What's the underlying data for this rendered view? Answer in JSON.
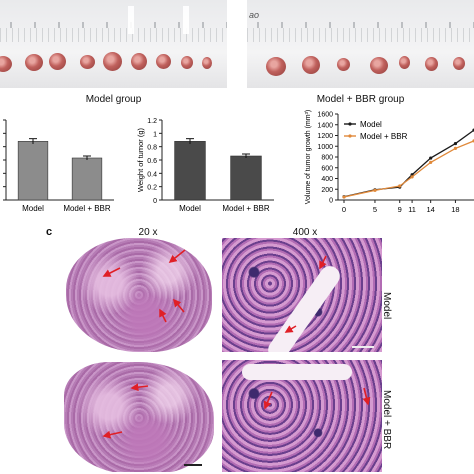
{
  "panel_a": {
    "photos": [
      {
        "name": "model",
        "caption": "Model group",
        "tumor_count": 10
      },
      {
        "name": "bbr",
        "caption": "Model + BBR group",
        "tumor_count": 8,
        "corner_text": "ao"
      }
    ]
  },
  "chart_data": [
    {
      "type": "bar",
      "title": "",
      "ylabel": "",
      "categories": [
        "Model",
        "Model + BBR"
      ],
      "values": [
        0.88,
        0.63
      ],
      "errors": [
        0.04,
        0.03
      ],
      "ylim": [
        0,
        1.2
      ],
      "color": "#8c8c8c",
      "yticks_shown": false
    },
    {
      "type": "bar",
      "title": "",
      "ylabel": "Weight of tumor (g)",
      "categories": [
        "Model",
        "Model + BBR"
      ],
      "values": [
        0.88,
        0.66
      ],
      "errors": [
        0.04,
        0.03
      ],
      "ylim": [
        0,
        1.2
      ],
      "yticks": [
        0,
        0.2,
        0.4,
        0.6,
        0.8,
        1,
        1.2
      ],
      "color": "#4a4a4a"
    },
    {
      "type": "line",
      "ylabel": "Volume of tumor growth (mm³)",
      "x": [
        0,
        5,
        9,
        11,
        14,
        18,
        21
      ],
      "xticks": [
        "0",
        "5",
        "9",
        "11",
        "14",
        "18"
      ],
      "yticks": [
        0,
        200,
        400,
        600,
        800,
        1000,
        1200,
        1400,
        1600
      ],
      "ylim": [
        0,
        1600
      ],
      "series": [
        {
          "name": "Model",
          "values": [
            60,
            190,
            240,
            470,
            780,
            1050,
            1300
          ],
          "color": "#1a1a1a"
        },
        {
          "name": "Model + BBR",
          "values": [
            55,
            180,
            260,
            430,
            700,
            960,
            1100
          ],
          "color": "#e0893a"
        }
      ],
      "legend": "top-left"
    }
  ],
  "panel_c": {
    "letter": "c",
    "mag_low": "20 x",
    "mag_high": "400 x",
    "rows": [
      {
        "label": "Model"
      },
      {
        "label": "Model + BBR"
      }
    ],
    "arrow_color": "#e01f26"
  }
}
